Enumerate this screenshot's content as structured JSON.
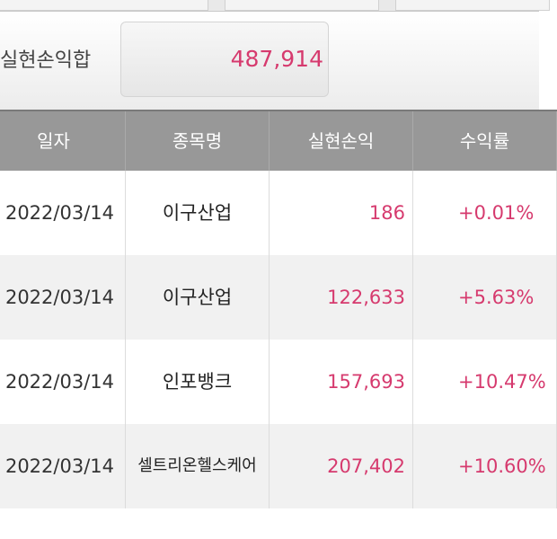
{
  "summary": {
    "label": "실현손익합",
    "value": "487,914"
  },
  "table": {
    "headers": [
      "일자",
      "종목명",
      "실현손익",
      "수익률"
    ],
    "rows": [
      {
        "date": "2022/03/14",
        "name": "이구산업",
        "pl": "186",
        "rate": "+0.01%"
      },
      {
        "date": "2022/03/14",
        "name": "이구산업",
        "pl": "122,633",
        "rate": "+5.63%"
      },
      {
        "date": "2022/03/14",
        "name": "인포뱅크",
        "pl": "157,693",
        "rate": "+10.47%"
      },
      {
        "date": "2022/03/14",
        "name": "셀트리온헬스케어",
        "pl": "207,402",
        "rate": "+10.60%"
      }
    ]
  },
  "colors": {
    "accent": "#d63a6e",
    "header_bg": "#989898"
  }
}
